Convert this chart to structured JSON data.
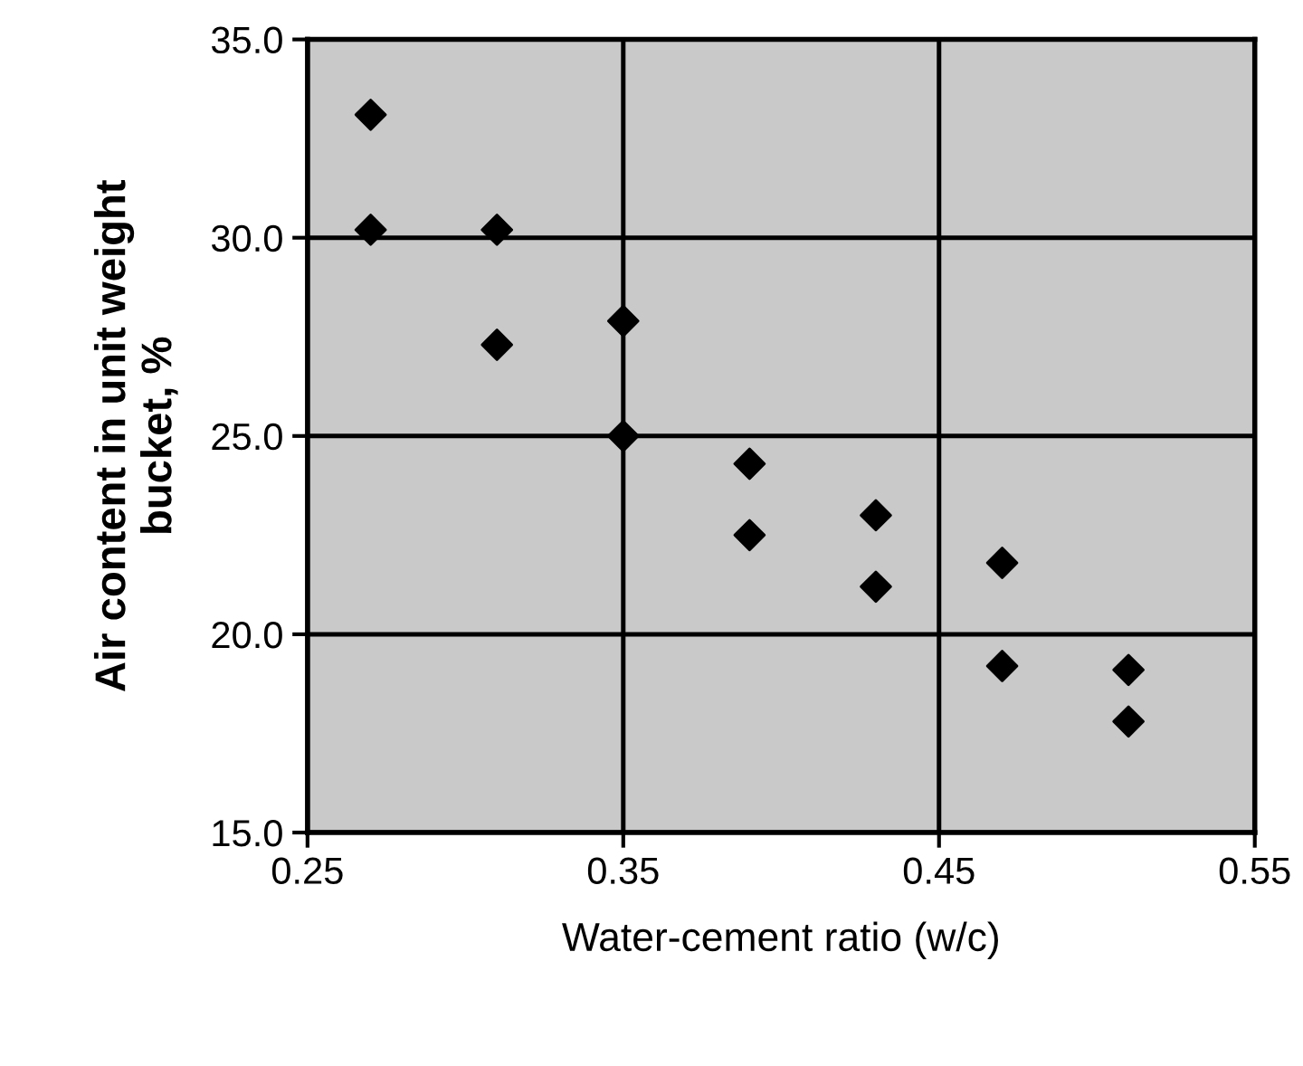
{
  "chart_data": {
    "type": "scatter",
    "xlabel": "Water-cement ratio (w/c)",
    "ylabel": "Air content in unit weight\nbucket, %",
    "x": [
      0.27,
      0.27,
      0.31,
      0.31,
      0.35,
      0.35,
      0.39,
      0.39,
      0.43,
      0.43,
      0.47,
      0.47,
      0.51,
      0.51
    ],
    "series": [
      {
        "color": "#000000",
        "values": [
          33.1,
          30.2,
          30.2,
          27.3,
          27.9,
          25.0,
          24.3,
          22.5,
          23.0,
          21.2,
          21.8,
          19.2,
          19.1,
          17.8
        ]
      }
    ],
    "xlim": [
      0.25,
      0.55
    ],
    "xticks": [
      {
        "value": 0.25,
        "label": "0.25"
      },
      {
        "value": 0.35,
        "label": "0.35"
      },
      {
        "value": 0.45,
        "label": "0.45"
      },
      {
        "value": 0.55,
        "label": "0.55"
      }
    ],
    "ylim": [
      15,
      35
    ],
    "yticks": [
      {
        "value": 15,
        "label": "15.0"
      },
      {
        "value": 20,
        "label": "20.0"
      },
      {
        "value": 25,
        "label": "25.0"
      },
      {
        "value": 30,
        "label": "30.0"
      },
      {
        "value": 35,
        "label": "35.0"
      }
    ],
    "grid": true,
    "marker": "diamond"
  }
}
